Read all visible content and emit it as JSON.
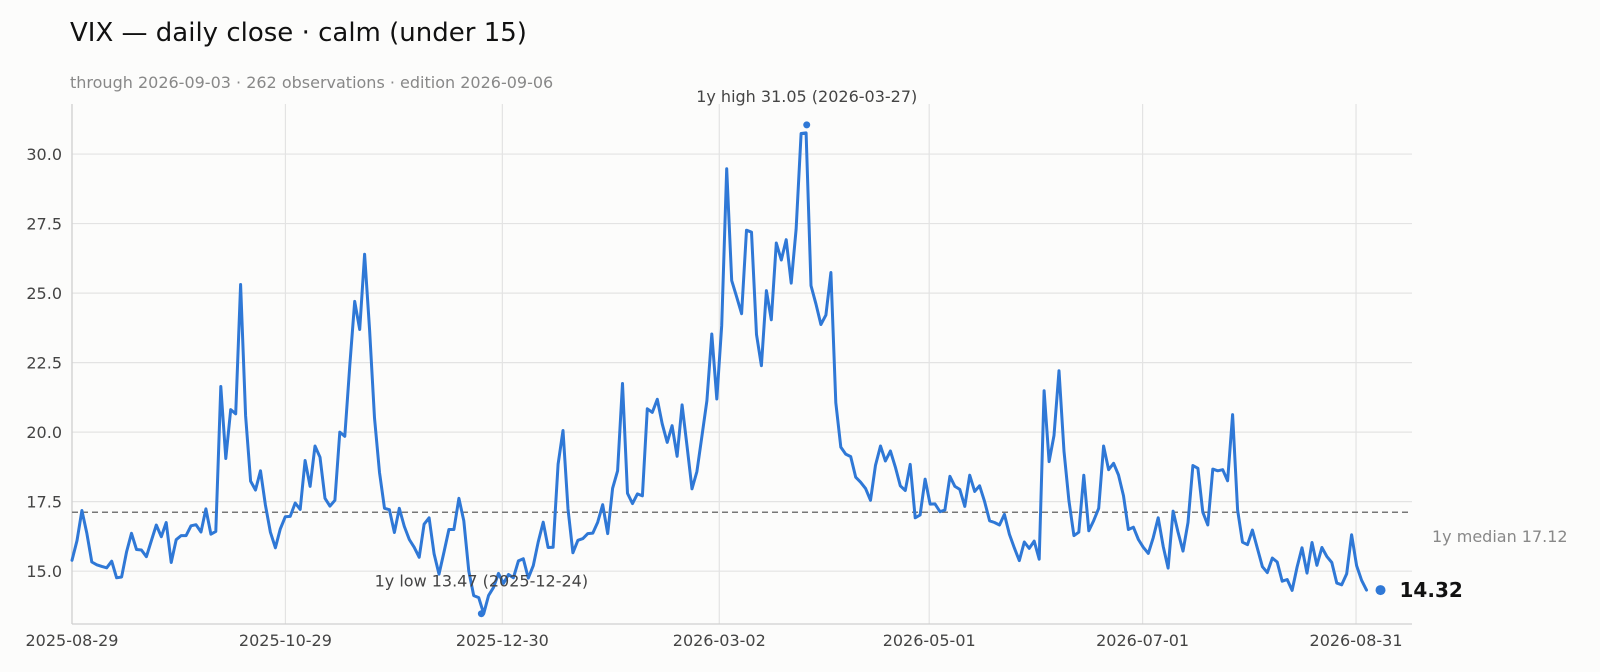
{
  "title": "VIX — daily close · calm (under 15)",
  "subtitle": "through 2026-09-03 · 262 observations · edition 2026-09-06",
  "colors": {
    "line": "#2f78d6",
    "grid": "#e3e3e3",
    "median": "#777777",
    "background": "#fcfcfb"
  },
  "chart_data": {
    "type": "line",
    "title": "VIX — daily close · calm (under 15)",
    "xlabel": "",
    "ylabel": "",
    "x_start": "2025-08-29",
    "x_end": "2026-09-03",
    "xlim": [
      "2025-08-29",
      "2026-09-16"
    ],
    "ylim": [
      13.1,
      31.8
    ],
    "grid": true,
    "x_ticks": [
      "2025-08-29",
      "2025-10-29",
      "2025-12-30",
      "2026-03-02",
      "2026-05-01",
      "2026-07-01",
      "2026-08-31"
    ],
    "y_ticks": [
      15.0,
      17.5,
      20.0,
      22.5,
      25.0,
      27.5,
      30.0
    ],
    "y_tick_labels": [
      "15.0",
      "17.5",
      "20.0",
      "22.5",
      "25.0",
      "27.5",
      "30.0"
    ],
    "series": [
      {
        "values": [
          15.39,
          16.1,
          17.18,
          16.35,
          15.33,
          15.23,
          15.17,
          15.12,
          15.36,
          14.76,
          14.79,
          15.7,
          16.36,
          15.78,
          15.76,
          15.52,
          16.1,
          16.66,
          16.24,
          16.75,
          15.31,
          16.13,
          16.28,
          16.28,
          16.63,
          16.67,
          16.41,
          17.24,
          16.33,
          16.43,
          21.64,
          19.05,
          20.81,
          20.66,
          25.31,
          20.59,
          18.24,
          17.92,
          18.61,
          17.38,
          16.4,
          15.84,
          16.52,
          16.96,
          16.97,
          17.45,
          17.22,
          18.98,
          18.05,
          19.5,
          19.1,
          17.62,
          17.34,
          17.55,
          20.0,
          19.85,
          22.4,
          24.7,
          23.69,
          26.4,
          23.67,
          20.51,
          18.55,
          17.26,
          17.21,
          16.39,
          17.26,
          16.61,
          16.14,
          15.86,
          15.5,
          16.69,
          16.92,
          15.62,
          14.89,
          15.69,
          16.5,
          16.5,
          17.62,
          16.81,
          15.0,
          14.12,
          14.05,
          13.47,
          14.13,
          14.42,
          14.92,
          14.56,
          14.88,
          14.76,
          15.37,
          15.45,
          14.75,
          15.2,
          16.05,
          16.76,
          15.85,
          15.86,
          18.85,
          20.06,
          17.24,
          15.66,
          16.11,
          16.17,
          16.35,
          16.37,
          16.76,
          17.39,
          16.35,
          17.98,
          18.61,
          21.75,
          17.8,
          17.43,
          17.78,
          17.71,
          20.84,
          20.71,
          21.18,
          20.3,
          19.63,
          20.23,
          19.13,
          20.98,
          19.51,
          17.96,
          18.58,
          19.85,
          21.13,
          23.53,
          21.19,
          23.83,
          29.47,
          25.45,
          24.87,
          24.26,
          27.26,
          27.19,
          23.51,
          22.39,
          25.09,
          24.04,
          26.8,
          26.19,
          26.92,
          25.36,
          27.29,
          30.74,
          30.76,
          25.27,
          24.6,
          23.87,
          24.21,
          25.74,
          21.06,
          19.46,
          19.21,
          19.12,
          18.38,
          18.2,
          17.97,
          17.55,
          18.81,
          19.5,
          18.96,
          19.32,
          18.75,
          18.07,
          17.9,
          18.84,
          16.92,
          17.02,
          18.31,
          17.41,
          17.42,
          17.14,
          17.2,
          18.41,
          18.05,
          17.94,
          17.33,
          18.45,
          17.87,
          18.07,
          17.5,
          16.81,
          16.75,
          16.66,
          17.04,
          16.33,
          15.83,
          15.38,
          16.05,
          15.82,
          16.08,
          15.43,
          21.49,
          18.94,
          19.88,
          22.21,
          19.31,
          17.54,
          16.28,
          16.4,
          18.45,
          16.45,
          16.82,
          17.26,
          19.5,
          18.65,
          18.88,
          18.46,
          17.71,
          16.5,
          16.58,
          16.14,
          15.86,
          15.64,
          16.2,
          16.92,
          15.89,
          15.11,
          17.16,
          16.41,
          15.72,
          16.75,
          18.8,
          18.7,
          17.12,
          16.66,
          18.67,
          18.61,
          18.65,
          18.25,
          20.63,
          17.2,
          16.04,
          15.95,
          16.48,
          15.82,
          15.16,
          14.95,
          15.47,
          15.33,
          14.64,
          14.7,
          14.31,
          15.15,
          15.84,
          14.93,
          16.03,
          15.21,
          15.85,
          15.53,
          15.31,
          14.57,
          14.51,
          14.91,
          16.31,
          15.2,
          14.67,
          14.32
        ]
      }
    ],
    "reference_lines": [
      {
        "type": "horizontal",
        "value": 17.12,
        "label": "1y median 17.12"
      }
    ],
    "annotations": {
      "high": {
        "value": 31.05,
        "date": "2026-03-27",
        "label": "1y high 31.05 (2026-03-27)"
      },
      "low": {
        "value": 13.47,
        "date": "2025-12-24",
        "label": "1y low 13.47 (2025-12-24)"
      },
      "last": {
        "value": 14.32,
        "date": "2026-09-03",
        "label": "14.32"
      }
    }
  }
}
